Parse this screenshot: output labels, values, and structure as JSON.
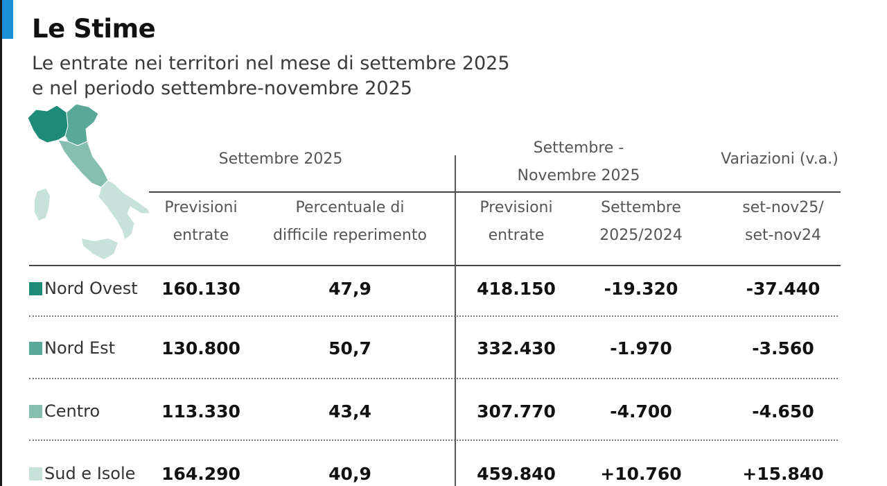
{
  "title": "Le Stime",
  "subtitle": "Le entrate nei territori nel mese di settembre 2025\ne nel periodo settembre-novembre 2025",
  "map_icon": "italy-regions-map",
  "headers": {
    "group_sept": "Settembre 2025",
    "group_period": "Settembre -\nNovembre 2025",
    "group_variations": "Variazioni (v.a.)",
    "col_prev_entrate": "Previsioni\nentrate",
    "col_percent": "Percentuale di\ndifficile reperimento",
    "col_prev_entrate_period": "Previsioni\nentrate",
    "col_var_sept": "Settembre\n2025/2024",
    "col_var_period": "set-nov25/\nset-nov24"
  },
  "rows": [
    {
      "region": "Nord Ovest",
      "color": "#1e8a78",
      "prev_entrate": "160.130",
      "percent": "47,9",
      "prev_entrate_period": "418.150",
      "var_sept": "-19.320",
      "var_period": "-37.440"
    },
    {
      "region": "Nord Est",
      "color": "#5aa898",
      "prev_entrate": "130.800",
      "percent": "50,7",
      "prev_entrate_period": "332.430",
      "var_sept": "-1.970",
      "var_period": "-3.560"
    },
    {
      "region": "Centro",
      "color": "#86bfb0",
      "prev_entrate": "113.330",
      "percent": "43,4",
      "prev_entrate_period": "307.770",
      "var_sept": "-4.700",
      "var_period": "-4.650"
    },
    {
      "region": "Sud e Isole",
      "color": "#c7e2da",
      "prev_entrate": "164.290",
      "percent": "40,9",
      "prev_entrate_period": "459.840",
      "var_sept": "+10.760",
      "var_period": "+15.840"
    }
  ]
}
